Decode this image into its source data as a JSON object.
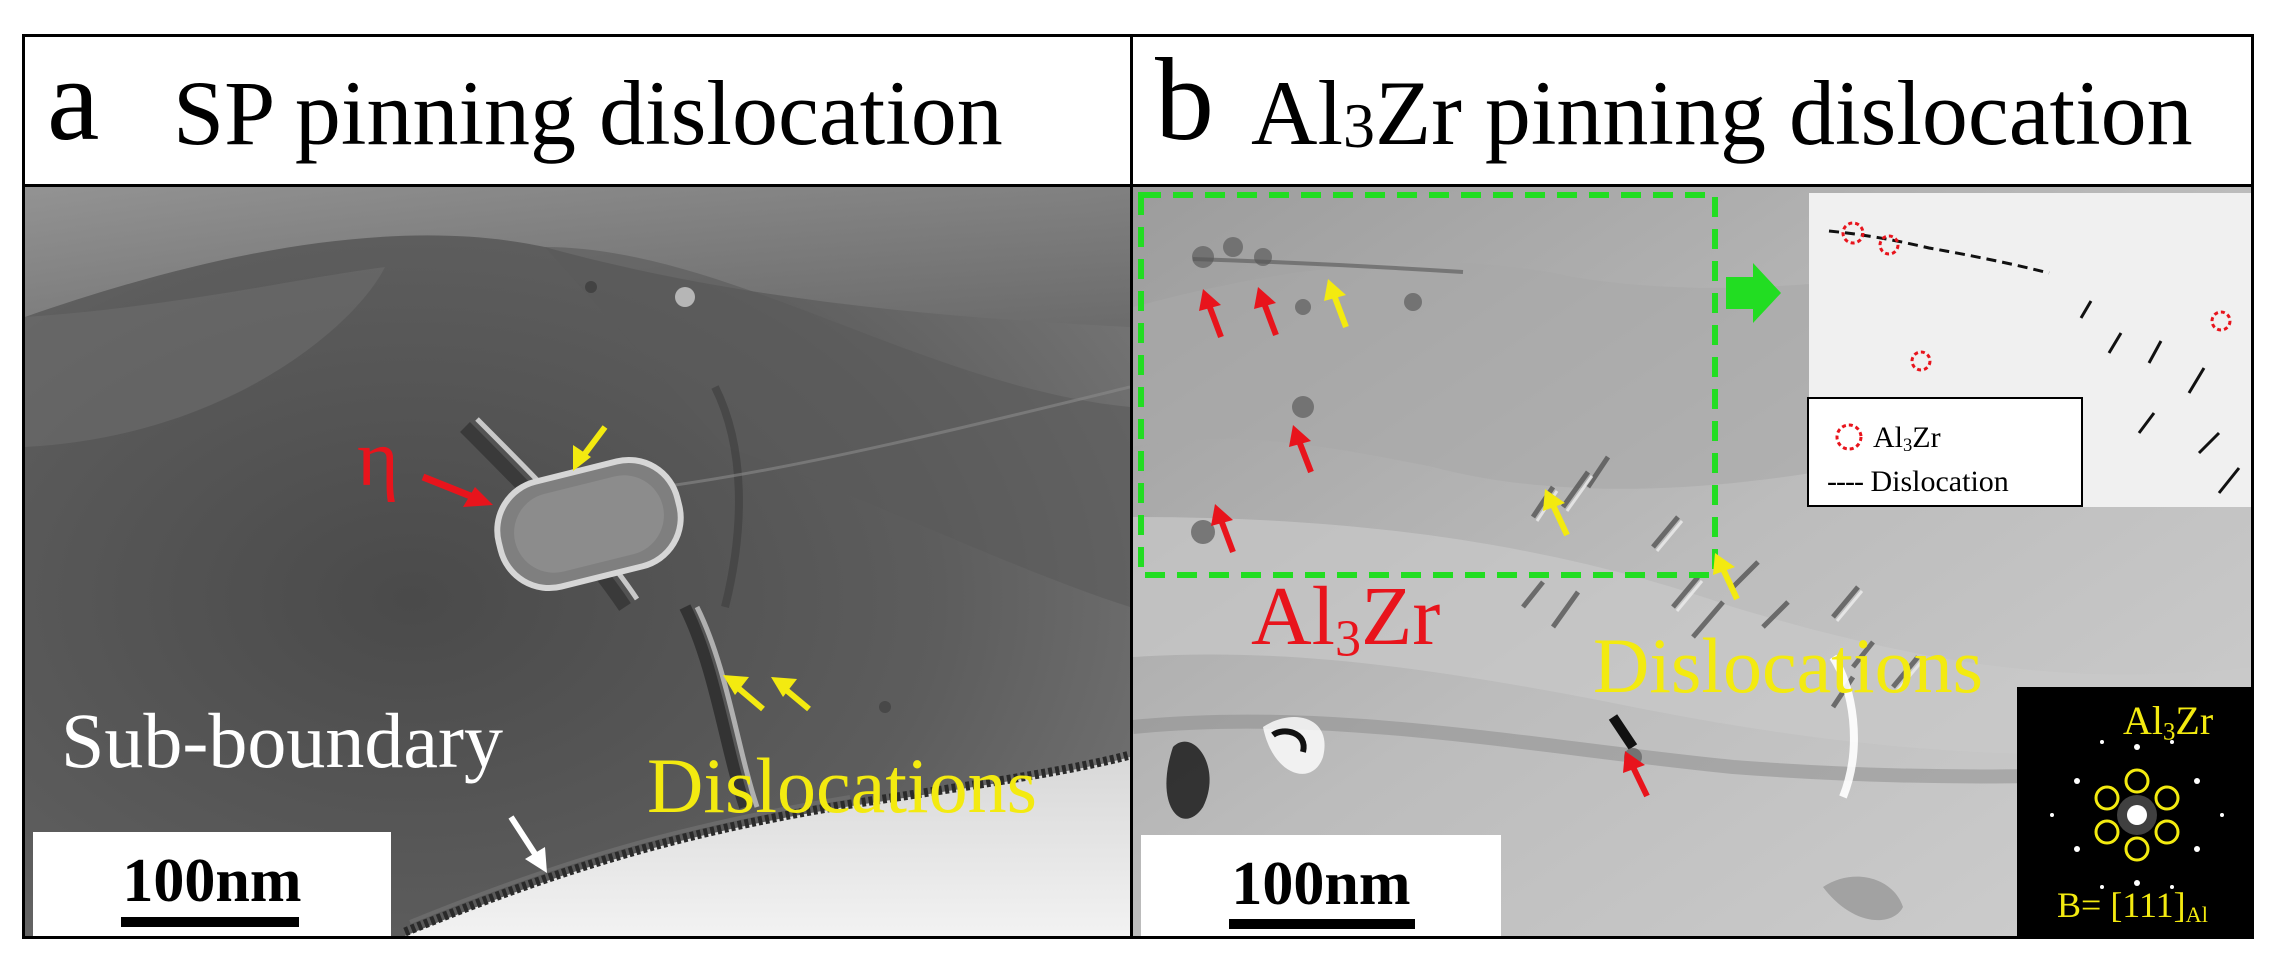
{
  "panel_a": {
    "letter": "a",
    "title": "SP pinning dislocation",
    "labels": {
      "eta": "η",
      "sub_boundary": "Sub-boundary",
      "dislocations": "Dislocations"
    },
    "scale_bar": "100nm"
  },
  "panel_b": {
    "letter": "b",
    "title_prefix": "Al",
    "title_sub": "3",
    "title_suffix": "Zr pinning dislocation",
    "labels": {
      "al3zr_prefix": "Al",
      "al3zr_sub": "3",
      "al3zr_suffix": "Zr",
      "dislocations": "Dislocations"
    },
    "scale_bar": "100nm",
    "legend": {
      "item1_prefix": "Al",
      "item1_sub": "3",
      "item1_suffix": "Zr",
      "item2": "Dislocation"
    },
    "saed": {
      "phase_prefix": "Al",
      "phase_sub": "3",
      "phase_suffix": "Zr",
      "zone_prefix": "B= [111]",
      "zone_sub": "Al"
    }
  },
  "colors": {
    "red_arrow": "#e8141c",
    "yellow_arrow": "#f3ea10",
    "green_box": "#22dd22",
    "white_arrow": "#ffffff"
  }
}
